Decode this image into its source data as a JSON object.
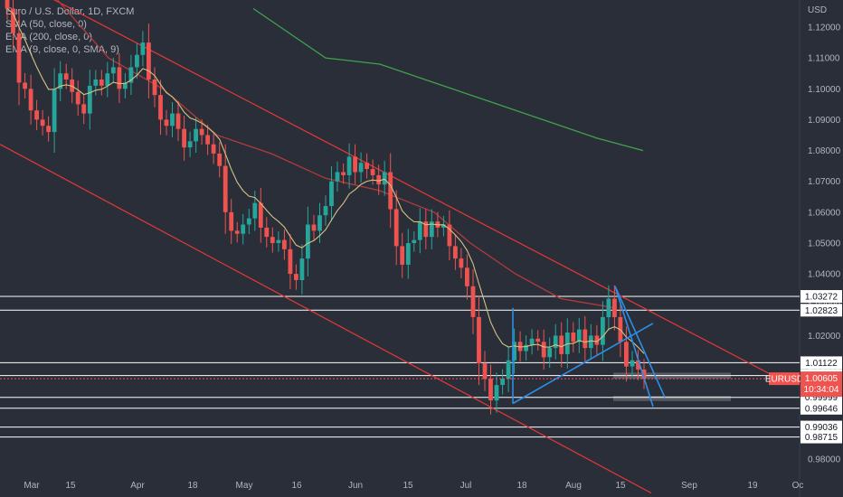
{
  "header": {
    "symbol_line": "Euro / U.S. Dollar, 1D, FXCM",
    "indicators": [
      "SMA (50, close, 0)",
      "EMA (200, close, 0)",
      "EMA (9, close, 0, SMA, 9)"
    ]
  },
  "colors": {
    "background": "#2a2e39",
    "up": "#26a69a",
    "down": "#ef5350",
    "channel": "#e53935",
    "ema9": "#d4c482",
    "sma50": "#b33a3a",
    "ema200": "#3fa34d",
    "trend_blue": "#2d8ee8",
    "level": "#ffffff",
    "zone": "#7a7d85"
  },
  "chart_data": {
    "type": "candlestick",
    "currency_label": "USD",
    "y_ticks": [
      "1.12000",
      "1.11000",
      "1.10000",
      "1.09000",
      "1.08000",
      "1.07000",
      "1.06000",
      "1.05000",
      "1.04000",
      "1.03000",
      "1.02000",
      "1.01000",
      "1.00000",
      "0.99000",
      "0.98000"
    ],
    "x_ticks": [
      "Mar",
      "15",
      "Apr",
      "18",
      "May",
      "16",
      "Jun",
      "15",
      "Jul",
      "18",
      "Aug",
      "15",
      "Sep",
      "19",
      "Oc"
    ],
    "price_levels": [
      {
        "label": "1.03272",
        "value": 1.03272
      },
      {
        "label": "1.02823",
        "value": 1.02823
      },
      {
        "label": "1.01122",
        "value": 1.01122
      },
      {
        "label": "1.00705",
        "value": 1.00705
      },
      {
        "label": "0.99999",
        "value": 0.99999
      },
      {
        "label": "0.99646",
        "value": 0.99646
      },
      {
        "label": "0.99036",
        "value": 0.99036
      },
      {
        "label": "0.98715",
        "value": 0.98715
      }
    ],
    "current_price": {
      "symbol": "EURUSD",
      "price": "1.00605",
      "countdown": "10:34:04",
      "value": 1.00605
    },
    "closes": [
      1.126,
      1.118,
      1.102,
      1.1,
      1.093,
      1.09,
      1.088,
      1.086,
      1.1,
      1.105,
      1.103,
      1.099,
      1.095,
      1.092,
      1.101,
      1.103,
      1.101,
      1.105,
      1.107,
      1.1,
      1.102,
      1.107,
      1.111,
      1.115,
      1.103,
      1.098,
      1.09,
      1.088,
      1.092,
      1.087,
      1.081,
      1.083,
      1.087,
      1.085,
      1.082,
      1.079,
      1.075,
      1.06,
      1.054,
      1.053,
      1.056,
      1.058,
      1.063,
      1.055,
      1.052,
      1.05,
      1.051,
      1.048,
      1.04,
      1.038,
      1.045,
      1.056,
      1.054,
      1.059,
      1.062,
      1.07,
      1.073,
      1.072,
      1.078,
      1.073,
      1.076,
      1.074,
      1.072,
      1.069,
      1.073,
      1.061,
      1.049,
      1.043,
      1.05,
      1.051,
      1.057,
      1.052,
      1.057,
      1.055,
      1.056,
      1.049,
      1.045,
      1.042,
      1.036,
      1.026,
      1.011,
      1.006,
      0.999,
      1.004,
      1.006,
      1.012,
      1.018,
      1.015,
      1.017,
      1.019,
      1.018,
      1.013,
      1.016,
      1.02,
      1.014,
      1.021,
      1.018,
      1.022,
      1.016,
      1.02,
      1.017,
      1.026,
      1.032,
      1.026,
      1.018,
      1.01,
      1.012,
      1.009,
      1.006
    ],
    "sma50": [
      [
        0,
        1.15
      ],
      [
        60,
        1.13
      ],
      [
        120,
        1.11
      ],
      [
        180,
        1.1
      ],
      [
        240,
        1.085
      ],
      [
        300,
        1.079
      ],
      [
        360,
        1.071
      ],
      [
        420,
        1.067
      ],
      [
        480,
        1.06
      ],
      [
        520,
        1.05
      ],
      [
        570,
        1.04
      ],
      [
        620,
        1.032
      ],
      [
        680,
        1.029
      ]
    ],
    "ema200": [
      [
        280,
        1.126
      ],
      [
        360,
        1.11
      ],
      [
        420,
        1.108
      ],
      [
        480,
        1.102
      ],
      [
        540,
        1.096
      ],
      [
        600,
        1.09
      ],
      [
        660,
        1.084
      ],
      [
        711,
        1.08
      ]
    ],
    "channel_upper": [
      [
        0,
        1.138
      ],
      [
        868,
        1.005
      ]
    ],
    "channel_lower": [
      [
        0,
        1.082
      ],
      [
        720,
        0.969
      ]
    ],
    "trend_lines": [
      {
        "from": [
          567,
          0.998
        ],
        "to": [
          722,
          1.024
        ]
      },
      {
        "from": [
          567,
          1.029
        ],
        "to": [
          567,
          0.998
        ]
      },
      {
        "from": [
          680,
          1.036
        ],
        "to": [
          735,
          1.0
        ]
      },
      {
        "from": [
          680,
          1.036
        ],
        "to": [
          722,
          0.997
        ]
      }
    ],
    "zones": [
      {
        "x0": 678,
        "x1": 808,
        "top": 1.008,
        "bottom": 1.006
      },
      {
        "x0": 678,
        "x1": 808,
        "top": 1.0005,
        "bottom": 0.9988
      }
    ]
  }
}
